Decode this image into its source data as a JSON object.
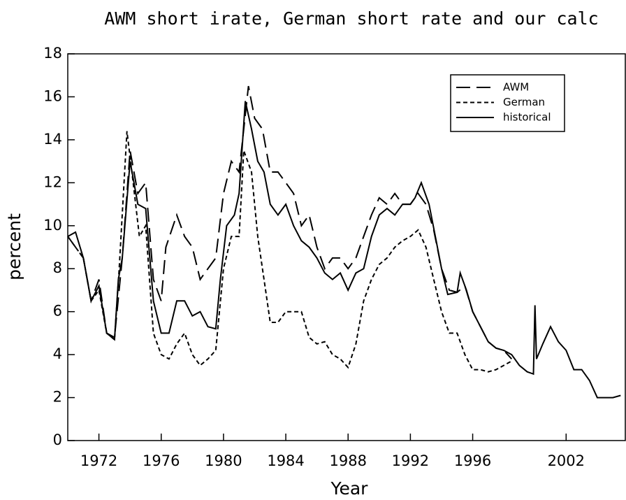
{
  "chart_data": {
    "type": "line",
    "title": "AWM short irate, German short rate and our calc",
    "x_label": "Year",
    "y_label": "percent",
    "xlim": [
      1970,
      2005.8
    ],
    "ylim": [
      0,
      18
    ],
    "xticks": [
      1972,
      1976,
      1980,
      1984,
      1988,
      1992,
      1996,
      2002
    ],
    "yticks": [
      0,
      2,
      4,
      6,
      8,
      10,
      12,
      14,
      16,
      18
    ],
    "legend": "upper right",
    "series": [
      {
        "name": "AWM",
        "color": "#000000",
        "style": "long-dash",
        "x": [
          1970,
          1971,
          1971.5,
          1972,
          1972.5,
          1973,
          1973.5,
          1974,
          1974.5,
          1975,
          1975.5,
          1976,
          1976.3,
          1977,
          1977.5,
          1978,
          1978.5,
          1979,
          1979.5,
          1980,
          1980.5,
          1981,
          1981.6,
          1982,
          1982.5,
          1983,
          1983.5,
          1984,
          1984.5,
          1985,
          1985.5,
          1986,
          1986.5,
          1987,
          1987.5,
          1988,
          1988.5,
          1989,
          1989.5,
          1990,
          1990.5,
          1991,
          1991.5,
          1992,
          1992.5,
          1993,
          1993.5,
          1994,
          1994.5,
          1995,
          1995.5,
          1996,
          1996.5,
          1997,
          1997.5,
          1998,
          1998.5
        ],
        "values": [
          9.5,
          8.5,
          6.5,
          7.5,
          5.0,
          4.8,
          8.5,
          13.5,
          11.5,
          12.0,
          7.5,
          6.5,
          9.0,
          10.5,
          9.5,
          9.0,
          7.5,
          8.0,
          8.5,
          11.5,
          13.0,
          12.5,
          16.5,
          15.0,
          14.5,
          12.5,
          12.5,
          12.0,
          11.5,
          10.0,
          10.5,
          9.0,
          8.0,
          8.5,
          8.5,
          8.0,
          8.5,
          9.5,
          10.5,
          11.3,
          11.0,
          11.5,
          11.0,
          11.0,
          11.5,
          11.0,
          9.8,
          8.0,
          7.0,
          6.9,
          7.2,
          6.0,
          5.3,
          4.6,
          4.3,
          4.2,
          3.8
        ]
      },
      {
        "name": "German",
        "color": "#000000",
        "style": "short-dash",
        "x": [
          1970,
          1971,
          1971.5,
          1972,
          1972.5,
          1973,
          1973.3,
          1973.8,
          1974.2,
          1974.6,
          1975,
          1975.5,
          1976,
          1976.5,
          1977,
          1977.5,
          1978,
          1978.5,
          1979,
          1979.5,
          1980,
          1980.5,
          1981,
          1981.3,
          1981.8,
          1982.2,
          1982.6,
          1983,
          1983.5,
          1984,
          1984.5,
          1985,
          1985.5,
          1986,
          1986.5,
          1987,
          1987.5,
          1988,
          1988.5,
          1989,
          1989.5,
          1990,
          1990.5,
          1991,
          1991.5,
          1992,
          1992.5,
          1993,
          1993.5,
          1994,
          1994.5,
          1995,
          1995.5,
          1996,
          1996.5,
          1997,
          1997.5,
          1998,
          1998.5
        ],
        "values": [
          9.5,
          8.5,
          6.5,
          7.0,
          5.0,
          4.7,
          8.0,
          14.4,
          12.0,
          9.5,
          10.0,
          5.0,
          4.0,
          3.8,
          4.5,
          5.0,
          4.0,
          3.5,
          3.8,
          4.2,
          8.0,
          9.5,
          9.5,
          13.5,
          12.5,
          9.5,
          7.5,
          5.5,
          5.5,
          6.0,
          6.0,
          6.0,
          4.8,
          4.5,
          4.6,
          4.0,
          3.8,
          3.4,
          4.5,
          6.5,
          7.5,
          8.2,
          8.5,
          9.0,
          9.3,
          9.5,
          9.8,
          9.0,
          7.5,
          6.0,
          5.0,
          5.0,
          4.0,
          3.3,
          3.3,
          3.2,
          3.3,
          3.5,
          3.7
        ]
      },
      {
        "name": "historical",
        "color": "#000000",
        "style": "solid",
        "x": [
          1970,
          1970.5,
          1971,
          1971.5,
          1972,
          1972.5,
          1973,
          1973.25,
          1973.5,
          1974,
          1974.5,
          1975,
          1975.5,
          1976,
          1976.5,
          1977,
          1977.5,
          1978,
          1978.5,
          1979,
          1979.5,
          1979.8,
          1980.2,
          1980.7,
          1981,
          1981.4,
          1981.8,
          1982.2,
          1982.6,
          1983,
          1983.5,
          1984,
          1984.5,
          1985,
          1985.5,
          1986,
          1986.5,
          1987,
          1987.5,
          1988,
          1988.5,
          1989,
          1989.5,
          1990,
          1990.5,
          1991,
          1991.5,
          1992,
          1992.3,
          1992.7,
          1993.2,
          1993.6,
          1994,
          1994.4,
          1995,
          1995.2,
          1995.6,
          1996,
          1996.5,
          1997,
          1997.5,
          1998,
          1998.5,
          1999,
          1999.5,
          1999.9,
          2000,
          2000.1,
          2000.5,
          2001,
          2001.5,
          2002,
          2002.5,
          2003,
          2003.5,
          2004,
          2004.5,
          2005,
          2005.5
        ],
        "values": [
          9.5,
          9.7,
          8.5,
          6.5,
          7.2,
          5.0,
          4.7,
          7.5,
          8.5,
          13.0,
          11.0,
          10.8,
          6.5,
          5.0,
          5.0,
          6.5,
          6.5,
          5.8,
          6.0,
          5.3,
          5.2,
          7.5,
          10.0,
          10.5,
          11.5,
          15.8,
          14.5,
          13.0,
          12.5,
          11.0,
          10.5,
          11.0,
          10.0,
          9.3,
          9.0,
          8.5,
          7.8,
          7.5,
          7.8,
          7.0,
          7.8,
          8.0,
          9.5,
          10.5,
          10.8,
          10.5,
          11.0,
          11.0,
          11.3,
          12.0,
          11.0,
          9.5,
          8.0,
          6.8,
          6.9,
          7.8,
          7.0,
          6.0,
          5.3,
          4.6,
          4.3,
          4.2,
          4.0,
          3.5,
          3.2,
          3.1,
          6.3,
          3.8,
          4.5,
          5.3,
          4.6,
          4.2,
          3.3,
          3.3,
          2.8,
          2.0,
          2.0,
          2.0,
          2.1
        ]
      }
    ]
  }
}
